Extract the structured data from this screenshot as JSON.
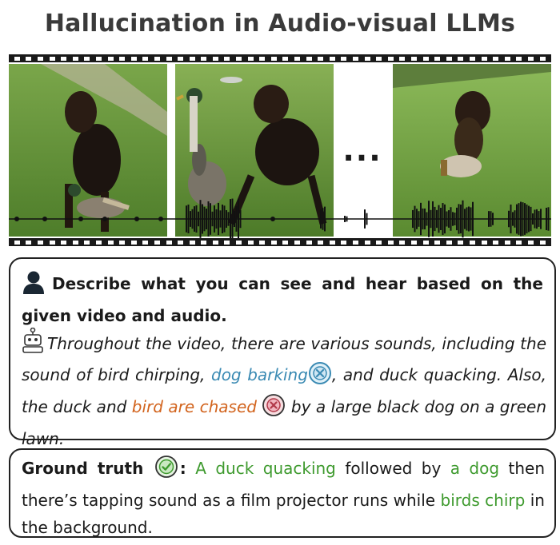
{
  "title": "Hallucination in Audio-visual LLMs",
  "ellipsis": "...",
  "question": {
    "icon": "user-icon",
    "text": "Describe what you can see and hear based on the given video and audio."
  },
  "answer": {
    "icon": "robot-icon",
    "part1": "Throughout the video, there are various sounds, including the sound of bird chirping, ",
    "hallucination1": "dog barking",
    "part2": ", and duck quacking. Also, the duck and ",
    "hallucination2": "bird are chased",
    "part3": " by a large black dog on a green lawn."
  },
  "ground_truth": {
    "label": "Ground truth",
    "colon": ":",
    "icon": "check-icon",
    "g1": "A duck quacking",
    "t1": " followed by ",
    "g2": "a dog",
    "t2": " then there’s tapping sound as a film projector runs while ",
    "g3": "birds chirp",
    "t3": " in the background."
  },
  "colors": {
    "hallucination_blue": "#3a8ab3",
    "hallucination_orange": "#d2641e",
    "correct_green": "#3e9a2e"
  }
}
